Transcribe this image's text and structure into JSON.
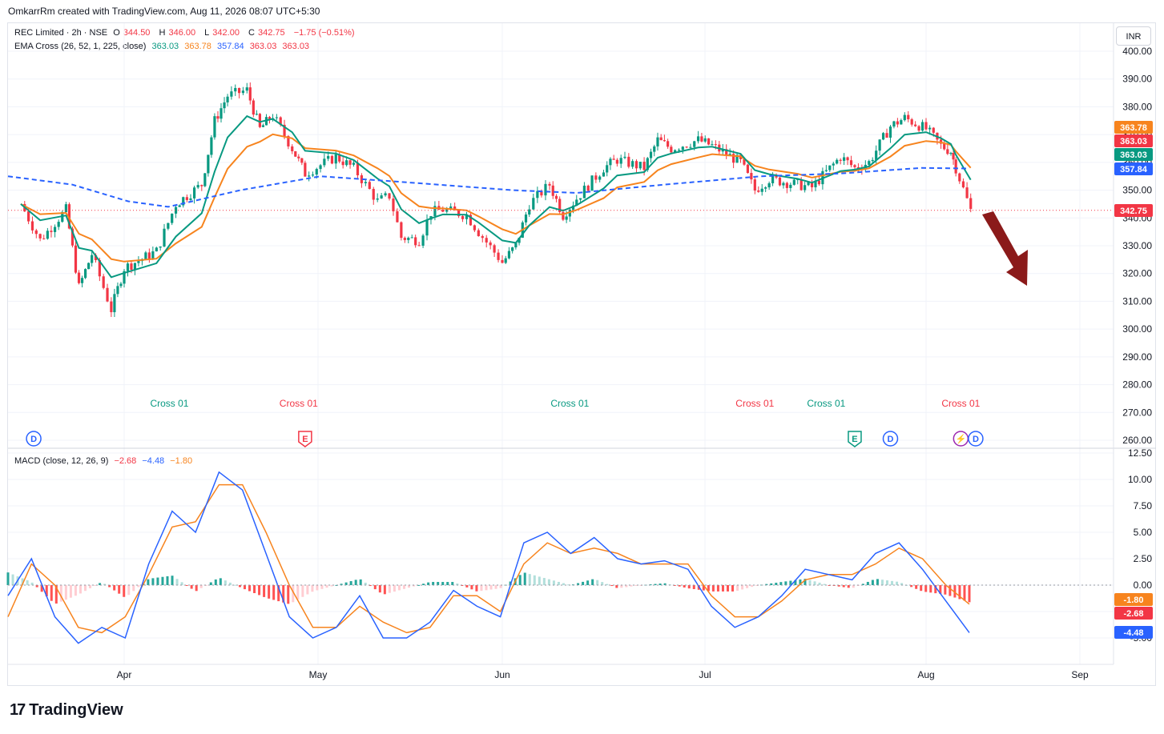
{
  "header": {
    "credit": "OmkarrRm created with TradingView.com, Aug 11, 2026 08:07 UTC+5:30"
  },
  "legend": {
    "symbol": "REC Limited · 2h · NSE",
    "o_label": "O",
    "o_value": "344.50",
    "h_label": "H",
    "h_value": "346.00",
    "l_label": "L",
    "l_value": "342.00",
    "c_label": "C",
    "c_value": "342.75",
    "change": "−1.75 (−0.51%)",
    "ema_name": "EMA Cross (26, 52, 1, 225, close)",
    "ema_values": [
      "363.03",
      "363.78",
      "357.84",
      "363.03",
      "363.03"
    ],
    "macd_name": "MACD (close, 12, 26, 9)",
    "macd_values": [
      "−2.68",
      "−4.48",
      "−1.80"
    ]
  },
  "currency": "INR",
  "brand": {
    "name": "TradingView",
    "logo": "17"
  },
  "colors": {
    "up": "#089981",
    "down": "#f23645",
    "ema_fast": "#089981",
    "ema_slow": "#f7841e",
    "ema_long": "#2962ff",
    "macd": "#2962ff",
    "signal": "#f7841e",
    "hist_pos": "#26a69a",
    "hist_pos_light": "#b2dfdb",
    "hist_neg": "#ff5252",
    "hist_neg_light": "#ffcdd2",
    "arrow": "#8b1a1a",
    "grid": "#f0f3fa"
  },
  "chart_data": [
    {
      "type": "candlestick",
      "title": "REC Limited · 2h · NSE",
      "y_axis": {
        "ticks": [
          "400.00",
          "390.00",
          "380.00",
          "370.00",
          "360.00",
          "350.00",
          "340.00",
          "330.00",
          "320.00",
          "310.00",
          "300.00",
          "290.00",
          "280.00",
          "270.00",
          "260.00"
        ],
        "ylim": [
          257,
          406
        ]
      },
      "x_axis": {
        "ticks": [
          "Apr",
          "May",
          "Jun",
          "Jul",
          "Aug",
          "Sep"
        ]
      },
      "series_summary": [
        {
          "date": "Mar 16",
          "close": 345
        },
        {
          "date": "Mar 19",
          "close": 332
        },
        {
          "date": "Mar 23",
          "close": 343
        },
        {
          "date": "Mar 25",
          "close": 315
        },
        {
          "date": "Mar 27",
          "close": 327
        },
        {
          "date": "Mar 30",
          "close": 307
        },
        {
          "date": "Apr 1",
          "close": 322
        },
        {
          "date": "Apr 6",
          "close": 328
        },
        {
          "date": "Apr 9",
          "close": 345
        },
        {
          "date": "Apr 13",
          "close": 352
        },
        {
          "date": "Apr 15",
          "close": 375
        },
        {
          "date": "Apr 17",
          "close": 384
        },
        {
          "date": "Apr 20",
          "close": 386
        },
        {
          "date": "Apr 22",
          "close": 372
        },
        {
          "date": "Apr 24",
          "close": 377
        },
        {
          "date": "Apr 27",
          "close": 365
        },
        {
          "date": "Apr 29",
          "close": 356
        },
        {
          "date": "May 4",
          "close": 362
        },
        {
          "date": "May 7",
          "close": 358
        },
        {
          "date": "May 11",
          "close": 346
        },
        {
          "date": "May 13",
          "close": 348
        },
        {
          "date": "May 15",
          "close": 333
        },
        {
          "date": "May 18",
          "close": 332
        },
        {
          "date": "May 20",
          "close": 342
        },
        {
          "date": "May 22",
          "close": 343
        },
        {
          "date": "May 26",
          "close": 341
        },
        {
          "date": "May 28",
          "close": 335
        },
        {
          "date": "Jun 1",
          "close": 324
        },
        {
          "date": "Jun 3",
          "close": 330
        },
        {
          "date": "Jun 5",
          "close": 345
        },
        {
          "date": "Jun 8",
          "close": 352
        },
        {
          "date": "Jun 10",
          "close": 341
        },
        {
          "date": "Jun 12",
          "close": 347
        },
        {
          "date": "Jun 16",
          "close": 358
        },
        {
          "date": "Jun 18",
          "close": 361
        },
        {
          "date": "Jun 22",
          "close": 358
        },
        {
          "date": "Jun 24",
          "close": 368
        },
        {
          "date": "Jun 26",
          "close": 365
        },
        {
          "date": "Jun 30",
          "close": 368
        },
        {
          "date": "Jul 2",
          "close": 366
        },
        {
          "date": "Jul 6",
          "close": 360
        },
        {
          "date": "Jul 8",
          "close": 350
        },
        {
          "date": "Jul 10",
          "close": 354
        },
        {
          "date": "Jul 14",
          "close": 352
        },
        {
          "date": "Jul 16",
          "close": 351
        },
        {
          "date": "Jul 20",
          "close": 362
        },
        {
          "date": "Jul 22",
          "close": 358
        },
        {
          "date": "Jul 24",
          "close": 360
        },
        {
          "date": "Jul 27",
          "close": 373
        },
        {
          "date": "Jul 29",
          "close": 376
        },
        {
          "date": "Aug 1",
          "close": 372
        },
        {
          "date": "Aug 4",
          "close": 366
        },
        {
          "date": "Aug 6",
          "close": 364
        },
        {
          "date": "Aug 7",
          "close": 358
        },
        {
          "date": "Aug 10",
          "close": 342.75
        }
      ],
      "last_values": {
        "close": "342.75",
        "ema_fast": "363.03",
        "ema_slow": "363.78",
        "ema_long": "357.84"
      },
      "cross_labels": [
        {
          "text": "Cross 01",
          "color": "up",
          "date": "Apr 8"
        },
        {
          "text": "Cross 01",
          "color": "down",
          "date": "Apr 28"
        },
        {
          "text": "Cross 01",
          "color": "up",
          "date": "Jun 11"
        },
        {
          "text": "Cross 01",
          "color": "down",
          "date": "Jul 8"
        },
        {
          "text": "Cross 01",
          "color": "up",
          "date": "Jul 18"
        },
        {
          "text": "Cross 01",
          "color": "down",
          "date": "Aug 8"
        }
      ],
      "events": [
        {
          "letter": "D",
          "color": "#2962ff",
          "date": "Mar 18"
        },
        {
          "letter": "E",
          "color": "#f23645",
          "date": "Apr 29"
        },
        {
          "letter": "E",
          "color": "#089981",
          "date": "Jul 22"
        },
        {
          "letter": "D",
          "color": "#2962ff",
          "date": "Jul 27"
        },
        {
          "letter": "⚡",
          "color": "#9c27b0",
          "date": "Aug 8"
        },
        {
          "letter": "D",
          "color": "#2962ff",
          "date": "Aug 11"
        }
      ]
    },
    {
      "type": "line",
      "title": "MACD (close, 12, 26, 9)",
      "y_axis": {
        "ticks": [
          "12.50",
          "10.00",
          "7.50",
          "5.00",
          "2.50",
          "0.00",
          "-2.50",
          "-5.00"
        ],
        "ylim": [
          -6.5,
          12.5
        ]
      },
      "series": [
        {
          "name": "MACD",
          "values": [
            -1,
            2.5,
            -3,
            -5.5,
            -4,
            -5,
            2,
            7,
            5,
            10.7,
            9,
            3,
            -3,
            -5,
            -4,
            -1,
            -5,
            -5,
            -3.5,
            -0.5,
            -2,
            -3,
            4,
            5,
            3,
            4.5,
            2.5,
            2,
            2.3,
            1.5,
            -2,
            -4,
            -3,
            -1,
            1.5,
            1,
            0.5,
            3,
            4,
            1.5,
            -1.5,
            -4.5
          ]
        },
        {
          "name": "Signal",
          "values": [
            -3,
            2,
            0,
            -4,
            -4.5,
            -3,
            1,
            5.5,
            6,
            9.5,
            9.5,
            5,
            0,
            -4,
            -4,
            -2,
            -3.5,
            -4.5,
            -4,
            -1,
            -1,
            -2.5,
            2,
            4,
            3,
            3.5,
            3,
            2,
            2,
            2,
            -1,
            -3,
            -3,
            -1.5,
            0.5,
            1,
            1,
            2,
            3.5,
            2.5,
            0,
            -1.8
          ]
        }
      ],
      "last_values": {
        "histogram": "-2.68",
        "macd": "-4.48",
        "signal": "-1.80"
      }
    }
  ]
}
